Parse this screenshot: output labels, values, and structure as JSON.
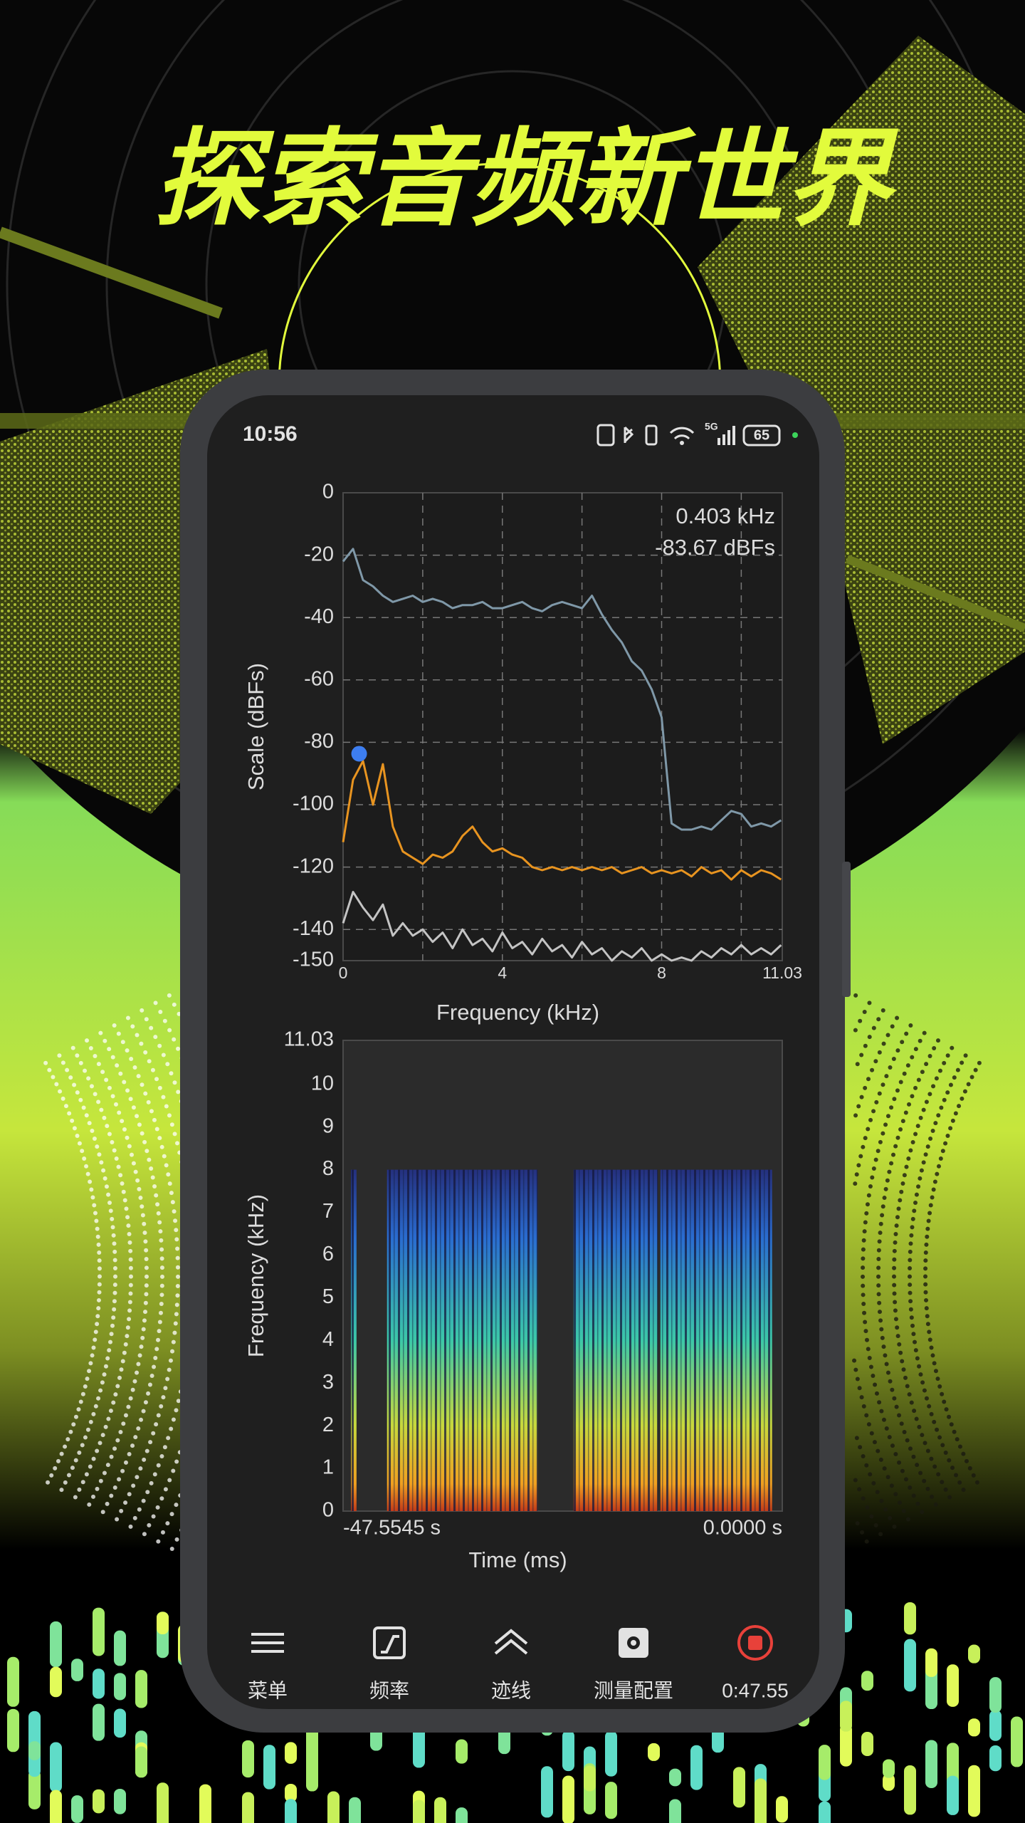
{
  "headline": "探索音频新世界",
  "status_bar": {
    "time": "10:56",
    "network": "5G",
    "battery": "65"
  },
  "chart_data": [
    {
      "type": "line",
      "ylabel": "Scale (dBFs)",
      "xlabel": "Frequency (kHz)",
      "xlim": [
        0,
        11.03
      ],
      "ylim": [
        -150,
        0
      ],
      "xticks": [
        0,
        4,
        8,
        11.03
      ],
      "yticks": [
        0,
        -20,
        -40,
        -60,
        -80,
        -100,
        -120,
        -140,
        -150
      ],
      "xgrid": [
        2,
        4,
        6,
        8,
        10
      ],
      "grid": true,
      "x": [
        0,
        0.25,
        0.5,
        0.75,
        1,
        1.25,
        1.5,
        1.75,
        2,
        2.25,
        2.5,
        2.75,
        3,
        3.25,
        3.5,
        3.75,
        4,
        4.25,
        4.5,
        4.75,
        5,
        5.25,
        5.5,
        5.75,
        6,
        6.25,
        6.5,
        6.75,
        7,
        7.25,
        7.5,
        7.75,
        8,
        8.25,
        8.5,
        8.75,
        9,
        9.25,
        9.5,
        9.75,
        10,
        10.25,
        10.5,
        10.75,
        11
      ],
      "series": [
        {
          "color": "#7f98a8",
          "values": [
            -22,
            -18,
            -28,
            -30,
            -33,
            -35,
            -34,
            -33,
            -35,
            -34,
            -35,
            -37,
            -36,
            -36,
            -35,
            -37,
            -37,
            -36,
            -35,
            -37,
            -38,
            -36,
            -35,
            -36,
            -37,
            -33,
            -39,
            -44,
            -48,
            -54,
            -57,
            -63,
            -72,
            -106,
            -108,
            -108,
            -107,
            -108,
            -105,
            -102,
            -103,
            -107,
            -106,
            -107,
            -105
          ]
        },
        {
          "color": "#e89420",
          "values": [
            -112,
            -92,
            -86,
            -100,
            -87,
            -107,
            -115,
            -117,
            -119,
            -116,
            -117,
            -115,
            -110,
            -107,
            -112,
            -115,
            -114,
            -116,
            -117,
            -120,
            -121,
            -120,
            -121,
            -120,
            -121,
            -120,
            -121,
            -120,
            -122,
            -121,
            -120,
            -122,
            -121,
            -122,
            -121,
            -123,
            -120,
            -122,
            -121,
            -124,
            -121,
            -123,
            -121,
            -122,
            -124
          ]
        },
        {
          "color": "#c4c4c4",
          "values": [
            -138,
            -128,
            -133,
            -137,
            -132,
            -142,
            -138,
            -142,
            -140,
            -144,
            -141,
            -146,
            -140,
            -145,
            -143,
            -147,
            -141,
            -146,
            -144,
            -148,
            -143,
            -147,
            -145,
            -149,
            -144,
            -148,
            -146,
            -150,
            -147,
            -149,
            -146,
            -150,
            -148,
            -150,
            -149,
            -150,
            -147,
            -149,
            -146,
            -148,
            -145,
            -148,
            -146,
            -148,
            -145
          ]
        }
      ],
      "marker": {
        "x": 0.403,
        "y": -83.67,
        "label_x": "0.403 kHz",
        "label_y": "-83.67 dBFs",
        "color": "#3d7ef0"
      }
    },
    {
      "type": "heatmap",
      "ylabel": "Frequency (kHz)",
      "xlabel": "Time (ms)",
      "xlim": [
        -47.5545,
        0
      ],
      "ylim": [
        0,
        11.03
      ],
      "xticks": [
        {
          "value": -47.5545,
          "label": "-47.5545 s"
        },
        {
          "value": 0,
          "label": "0.0000 s"
        }
      ],
      "yticks": [
        0,
        1,
        2,
        3,
        4,
        5,
        6,
        7,
        8,
        9,
        10,
        11.03
      ],
      "segments": [
        {
          "start": -46.7,
          "end": -46.1,
          "top": 8
        },
        {
          "start": -42.8,
          "end": -26.5,
          "top": 8
        },
        {
          "start": -22.6,
          "end": -13.5,
          "top": 8
        },
        {
          "start": -13.2,
          "end": -1.1,
          "top": 8
        }
      ]
    }
  ],
  "nav": [
    "菜单",
    "频率",
    "迹线",
    "测量配置",
    "0:47.55"
  ]
}
